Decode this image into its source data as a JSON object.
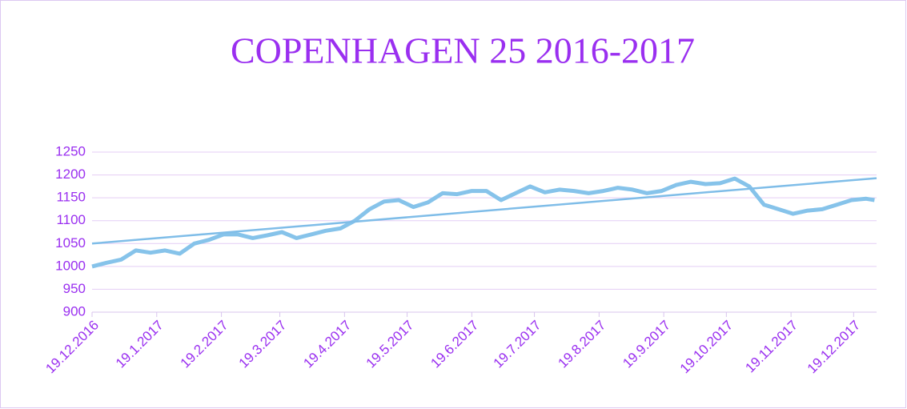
{
  "chart_data": {
    "type": "line",
    "title": "COPENHAGEN 25 2016-2017",
    "x": [
      "19.12.2016",
      "26.12.2016",
      "2.1.2017",
      "9.1.2017",
      "16.1.2017",
      "23.1.2017",
      "30.1.2017",
      "6.2.2017",
      "13.2.2017",
      "20.2.2017",
      "27.2.2017",
      "6.3.2017",
      "13.3.2017",
      "20.3.2017",
      "27.3.2017",
      "3.4.2017",
      "10.4.2017",
      "17.4.2017",
      "24.4.2017",
      "1.5.2017",
      "8.5.2017",
      "15.5.2017",
      "22.5.2017",
      "29.5.2017",
      "5.6.2017",
      "12.6.2017",
      "19.6.2017",
      "26.6.2017",
      "3.7.2017",
      "10.7.2017",
      "17.7.2017",
      "24.7.2017",
      "31.7.2017",
      "7.8.2017",
      "14.8.2017",
      "21.8.2017",
      "28.8.2017",
      "4.9.2017",
      "11.9.2017",
      "18.9.2017",
      "25.9.2017",
      "2.10.2017",
      "9.10.2017",
      "16.10.2017",
      "23.10.2017",
      "30.10.2017",
      "6.11.2017",
      "13.11.2017",
      "20.11.2017",
      "27.11.2017",
      "4.12.2017",
      "11.12.2017",
      "18.12.2017",
      "25.12.2017",
      "29.12.2017"
    ],
    "series": [
      {
        "color": "#86c3ea",
        "values": [
          1000,
          1008,
          1015,
          1035,
          1030,
          1035,
          1028,
          1050,
          1058,
          1070,
          1070,
          1062,
          1068,
          1075,
          1062,
          1070,
          1078,
          1083,
          1100,
          1125,
          1142,
          1145,
          1130,
          1140,
          1160,
          1158,
          1165,
          1165,
          1145,
          1160,
          1175,
          1162,
          1168,
          1165,
          1160,
          1165,
          1172,
          1168,
          1160,
          1165,
          1178,
          1185,
          1180,
          1182,
          1192,
          1175,
          1135,
          1125,
          1115,
          1122,
          1125,
          1135,
          1145,
          1148,
          1145
        ]
      }
    ],
    "trendline": {
      "x": [
        "19.12.2016",
        "30.12.2017"
      ],
      "values": [
        1050,
        1193
      ],
      "color": "#7fbde8"
    },
    "xlim": [
      "19.12.2016",
      "30.12.2017"
    ],
    "xticks": [
      "19.12.2016",
      "19.1.2017",
      "19.2.2017",
      "19.3.2017",
      "19.4.2017",
      "19.5.2017",
      "19.6.2017",
      "19.7.2017",
      "19.8.2017",
      "19.9.2017",
      "19.10.2017",
      "19.11.2017",
      "19.12.2017"
    ],
    "ylim": [
      900,
      1250
    ],
    "yticks": [
      900,
      950,
      1000,
      1050,
      1100,
      1150,
      1200,
      1250
    ],
    "grid": true
  }
}
